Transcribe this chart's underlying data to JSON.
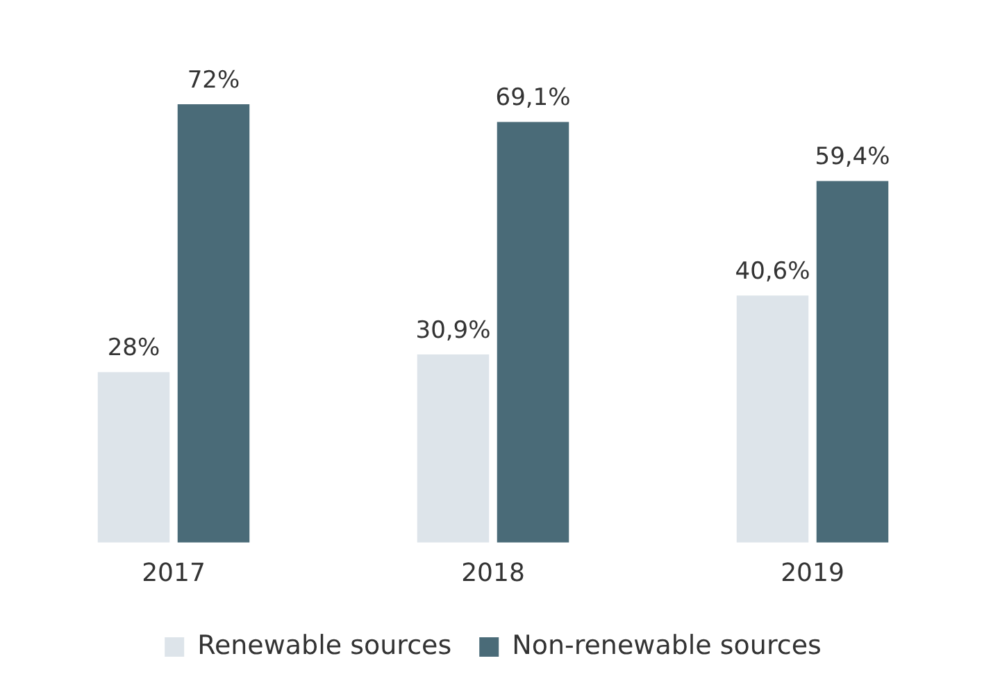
{
  "chart_data": {
    "type": "bar",
    "categories": [
      "2017",
      "2018",
      "2019"
    ],
    "series": [
      {
        "name": "Renewable sources",
        "color": "#dde4ea",
        "values": [
          28,
          30.9,
          40.6
        ],
        "value_labels": [
          "28%",
          "30,9%",
          "40,6%"
        ]
      },
      {
        "name": "Non-renewable sources",
        "color": "#4a6b78",
        "values": [
          72,
          69.1,
          59.4
        ],
        "value_labels": [
          "72%",
          "69,1%",
          "59,4%"
        ]
      }
    ],
    "legend": "bottom",
    "grid": false
  }
}
